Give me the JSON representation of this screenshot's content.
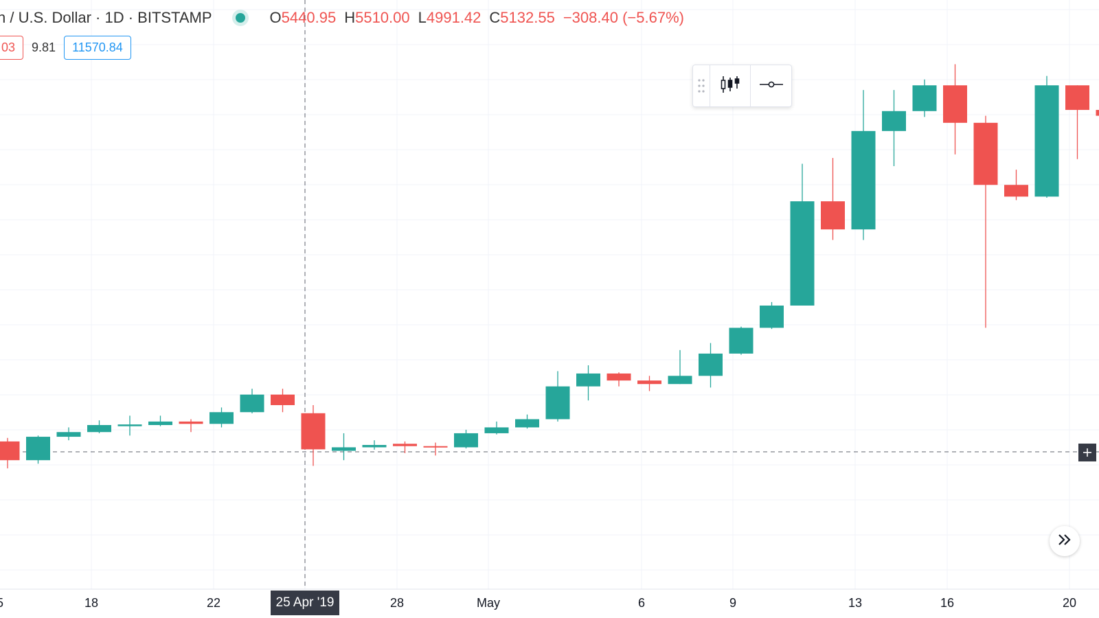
{
  "legend": {
    "symbol_text": "n / U.S. Dollar · 1D · BITSTAMP",
    "open_key": "O",
    "open": "5440.95",
    "high_key": "H",
    "high": "5510.00",
    "low_key": "L",
    "low": "4991.42",
    "close_key": "C",
    "close": "5132.55",
    "change": "−308.40 (−5.67%)",
    "status_color": "#26a69a"
  },
  "price_pills": {
    "left": "03",
    "plain": "9.81",
    "current": "11570.84"
  },
  "toolbar": {
    "chart_type_icon": "candles-icon",
    "line_tool_icon": "horizontal-line-icon",
    "drag_icon": "drag-handle-icon"
  },
  "crosshair": {
    "date_label": "25 Apr '19"
  },
  "colors": {
    "up": "#26a69a",
    "down": "#ef5350"
  },
  "chart_data": {
    "type": "candlestick",
    "x_ticks": [
      "5",
      "18",
      "22",
      "28",
      "May",
      "6",
      "9",
      "13",
      "16",
      "20"
    ],
    "candles": [
      {
        "date": "Apr 15",
        "o": 5200,
        "h": 5230,
        "l": 4970,
        "c": 5040
      },
      {
        "date": "Apr 16",
        "o": 5040,
        "h": 5250,
        "l": 5010,
        "c": 5240
      },
      {
        "date": "Apr 17",
        "o": 5240,
        "h": 5320,
        "l": 5210,
        "c": 5280
      },
      {
        "date": "Apr 18",
        "o": 5280,
        "h": 5380,
        "l": 5270,
        "c": 5340
      },
      {
        "date": "Apr 19",
        "o": 5330,
        "h": 5420,
        "l": 5250,
        "c": 5345
      },
      {
        "date": "Apr 20",
        "o": 5340,
        "h": 5420,
        "l": 5330,
        "c": 5370
      },
      {
        "date": "Apr 21",
        "o": 5370,
        "h": 5390,
        "l": 5280,
        "c": 5350
      },
      {
        "date": "Apr 22",
        "o": 5350,
        "h": 5490,
        "l": 5320,
        "c": 5450
      },
      {
        "date": "Apr 23",
        "o": 5450,
        "h": 5650,
        "l": 5440,
        "c": 5600
      },
      {
        "date": "Apr 24",
        "o": 5600,
        "h": 5650,
        "l": 5450,
        "c": 5510
      },
      {
        "date": "Apr 25",
        "o": 5440.95,
        "h": 5510,
        "l": 4991.42,
        "c": 5132.55
      },
      {
        "date": "Apr 26",
        "o": 5120,
        "h": 5270,
        "l": 5040,
        "c": 5150
      },
      {
        "date": "Apr 27",
        "o": 5150,
        "h": 5210,
        "l": 5130,
        "c": 5170
      },
      {
        "date": "Apr 28",
        "o": 5180,
        "h": 5200,
        "l": 5100,
        "c": 5160
      },
      {
        "date": "Apr 29",
        "o": 5160,
        "h": 5190,
        "l": 5080,
        "c": 5150
      },
      {
        "date": "Apr 30",
        "o": 5150,
        "h": 5300,
        "l": 5140,
        "c": 5270
      },
      {
        "date": "May 1",
        "o": 5270,
        "h": 5370,
        "l": 5260,
        "c": 5320
      },
      {
        "date": "May 2",
        "o": 5320,
        "h": 5430,
        "l": 5310,
        "c": 5390
      },
      {
        "date": "May 3",
        "o": 5390,
        "h": 5800,
        "l": 5370,
        "c": 5670
      },
      {
        "date": "May 4",
        "o": 5670,
        "h": 5850,
        "l": 5550,
        "c": 5780
      },
      {
        "date": "May 5",
        "o": 5780,
        "h": 5790,
        "l": 5670,
        "c": 5720
      },
      {
        "date": "May 6",
        "o": 5720,
        "h": 5760,
        "l": 5630,
        "c": 5690
      },
      {
        "date": "May 7",
        "o": 5690,
        "h": 5980,
        "l": 5690,
        "c": 5760
      },
      {
        "date": "May 8",
        "o": 5760,
        "h": 6040,
        "l": 5660,
        "c": 5950
      },
      {
        "date": "May 9",
        "o": 5950,
        "h": 6180,
        "l": 5940,
        "c": 6170
      },
      {
        "date": "May 10",
        "o": 6170,
        "h": 6390,
        "l": 6160,
        "c": 6360
      },
      {
        "date": "May 11",
        "o": 6360,
        "h": 7570,
        "l": 6360,
        "c": 7250
      },
      {
        "date": "May 12",
        "o": 7250,
        "h": 7620,
        "l": 6920,
        "c": 7010
      },
      {
        "date": "May 13",
        "o": 7010,
        "h": 8200,
        "l": 6920,
        "c": 7850
      },
      {
        "date": "May 14",
        "o": 7850,
        "h": 8200,
        "l": 7550,
        "c": 8020
      },
      {
        "date": "May 15",
        "o": 8020,
        "h": 8290,
        "l": 7970,
        "c": 8240
      },
      {
        "date": "May 16",
        "o": 8240,
        "h": 8420,
        "l": 7650,
        "c": 7920
      },
      {
        "date": "May 17",
        "o": 7920,
        "h": 7980,
        "l": 6170,
        "c": 7390
      },
      {
        "date": "May 18",
        "o": 7390,
        "h": 7520,
        "l": 7260,
        "c": 7290
      },
      {
        "date": "May 19",
        "o": 7290,
        "h": 8320,
        "l": 7280,
        "c": 8240
      },
      {
        "date": "May 20",
        "o": 8240,
        "h": 8240,
        "l": 7610,
        "c": 8030
      },
      {
        "date": "May 21",
        "o": 8030,
        "h": 8050,
        "l": 7710,
        "c": 7980
      }
    ]
  }
}
